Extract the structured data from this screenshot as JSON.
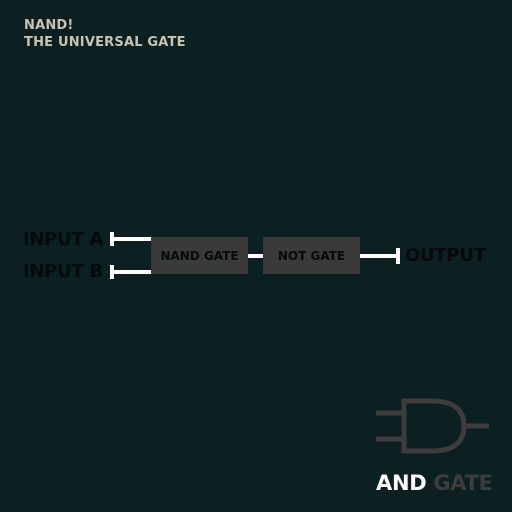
{
  "header": {
    "line1": "NAND!",
    "line2": "THE UNIVERSAL GATE"
  },
  "circuit": {
    "input_a": "INPUT A",
    "input_b": "INPUT B",
    "gates": [
      {
        "label": "NAND GATE"
      },
      {
        "label": "NOT GATE"
      }
    ],
    "output": "OUTPUT"
  },
  "target": {
    "word1": "AND",
    "word2": "GATE",
    "icon": "and-gate-icon"
  },
  "colors": {
    "background": "#0c1f21",
    "title": "#c8c4b4",
    "wire": "#ffffff",
    "gate_fill": "#3a3a3a",
    "label_dark": "#050a0b",
    "icon_stroke": "#3d3d3d"
  }
}
